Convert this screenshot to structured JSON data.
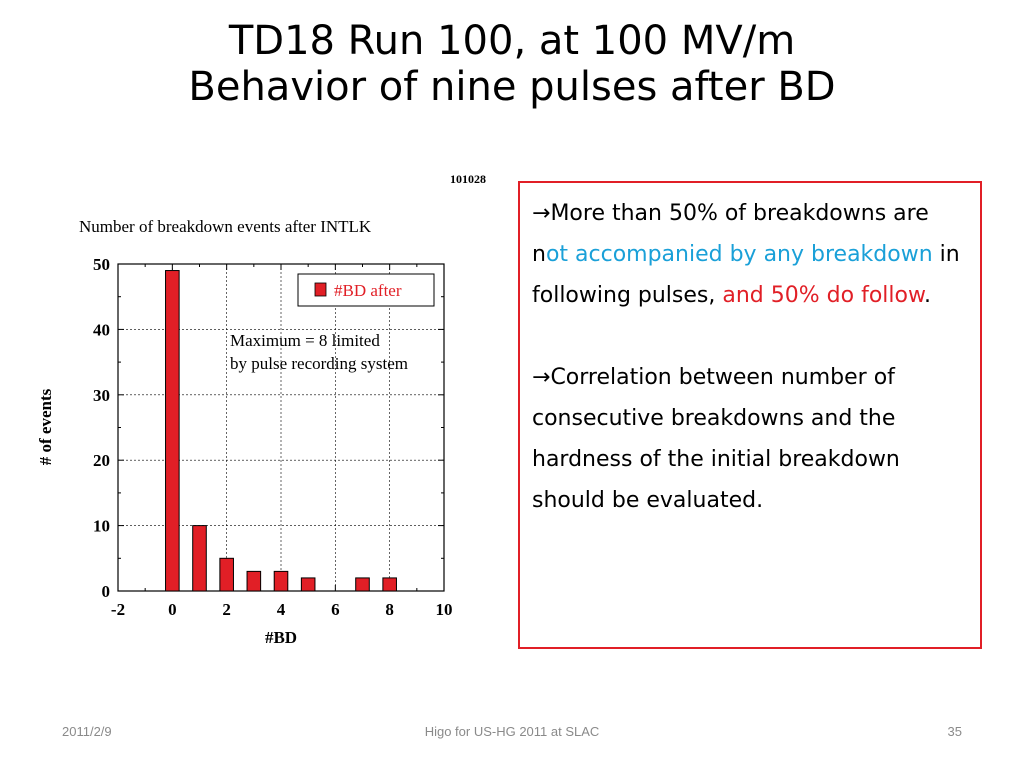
{
  "slide": {
    "title_line1": "TD18  Run 100, at 100 MV/m",
    "title_line2": "Behavior of nine pulses after BD"
  },
  "chart_data": {
    "type": "bar",
    "id_label": "101028",
    "title": "Number of breakdown events after INTLK",
    "xlabel": "#BD",
    "ylabel": "# of events",
    "xlim": [
      -2,
      10
    ],
    "ylim": [
      0,
      50
    ],
    "xticks": [
      -2,
      0,
      2,
      4,
      6,
      8,
      10
    ],
    "yticks": [
      0,
      10,
      20,
      30,
      40,
      50
    ],
    "grid": true,
    "legend": "top-right",
    "annotation_line1": "Maximum = 8 limited",
    "annotation_line2": "by pulse recording system",
    "series": [
      {
        "name": "#BD after",
        "color": "#e11f26",
        "x": [
          0,
          1,
          2,
          3,
          4,
          5,
          6,
          7,
          8
        ],
        "values": [
          49,
          10,
          5,
          3,
          3,
          2,
          0,
          2,
          2
        ]
      }
    ]
  },
  "textbox": {
    "border_color": "#e11f26",
    "p1": {
      "arrow": "→",
      "t1": "More than 50% of breakdowns are n",
      "t2": "ot accompanied by any breakdown",
      "t3": " in following pulses, ",
      "t4": "and 50% do follow",
      "t5": "."
    },
    "p2": {
      "arrow": "→",
      "text": "Correlation between number of consecutive breakdowns and the hardness of the initial breakdown should be evaluated."
    }
  },
  "footer": {
    "date": "2011/2/9",
    "center": "Higo for US-HG 2011 at SLAC",
    "page": "35"
  }
}
